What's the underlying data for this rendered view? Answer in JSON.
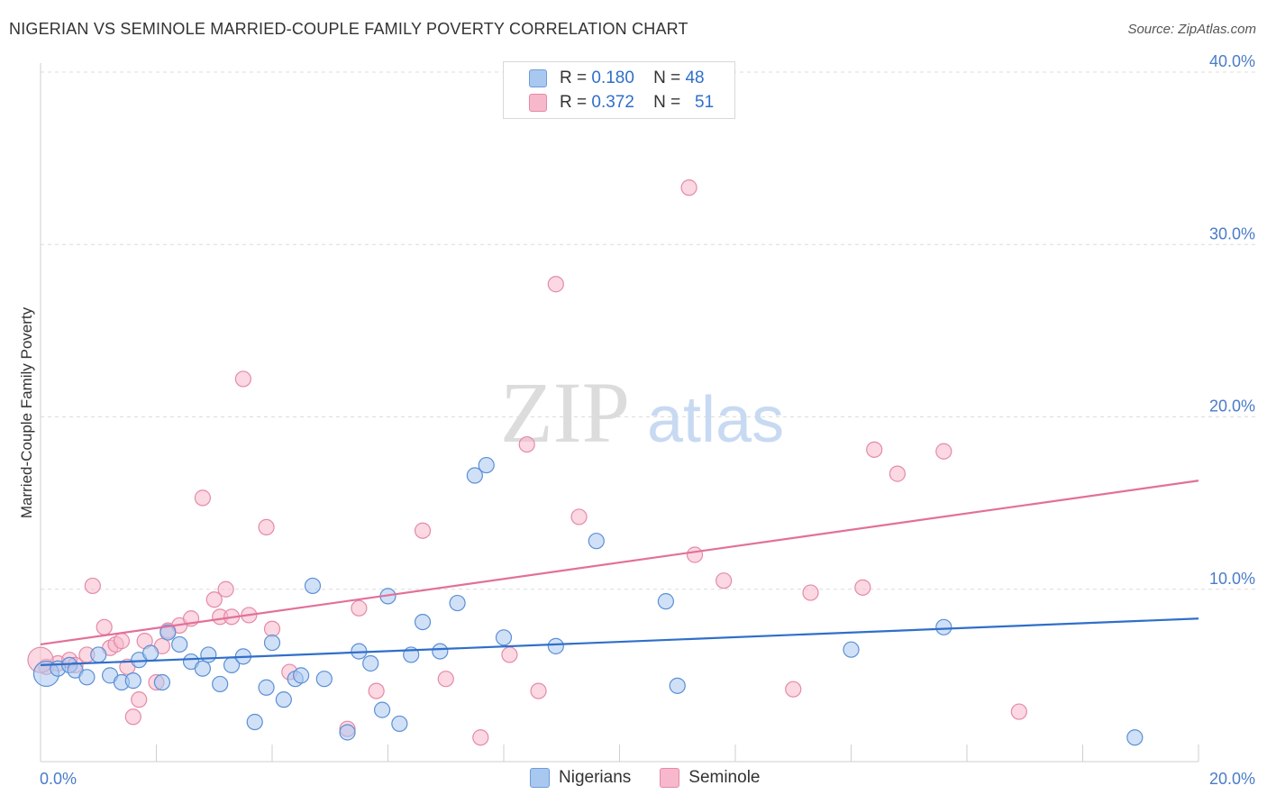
{
  "header": {
    "title": "NIGERIAN VS SEMINOLE MARRIED-COUPLE FAMILY POVERTY CORRELATION CHART",
    "source": "Source: ZipAtlas.com"
  },
  "watermark": {
    "zip": "ZIP",
    "atlas": "atlas"
  },
  "legend": {
    "rows": [
      {
        "r_label": "R =",
        "r_value": "0.180",
        "n_label": "N =",
        "n_value": "48",
        "color": "#a9c8f0"
      },
      {
        "r_label": "R =",
        "r_value": "0.372",
        "n_label": "N =",
        "n_value": "51",
        "color": "#f7b8cb"
      }
    ]
  },
  "bottom_legend": {
    "series1": "Nigerians",
    "series2": "Seminole"
  },
  "chart_data": {
    "type": "scatter",
    "title": "NIGERIAN VS SEMINOLE MARRIED-COUPLE FAMILY POVERTY CORRELATION CHART",
    "xlabel": "",
    "ylabel": "Married-Couple Family Poverty",
    "xlim": [
      0,
      20
    ],
    "ylim": [
      0,
      40
    ],
    "x_tick_labels": [
      "0.0%",
      "20.0%"
    ],
    "y_tick_labels": [
      "10.0%",
      "20.0%",
      "30.0%",
      "40.0%"
    ],
    "y_ticks": [
      10,
      20,
      30,
      40
    ],
    "grid": true,
    "legend_position": "top-center",
    "series": [
      {
        "name": "Nigerians",
        "color": "#5b8fd6",
        "fill": "#a9c8f0",
        "trend": {
          "x": [
            0,
            20
          ],
          "y": [
            5.6,
            8.3
          ],
          "color": "#2f6fca"
        },
        "points": [
          [
            0.1,
            5.1
          ],
          [
            0.3,
            5.4
          ],
          [
            0.5,
            5.6
          ],
          [
            0.6,
            5.3
          ],
          [
            0.8,
            4.9
          ],
          [
            1.0,
            6.2
          ],
          [
            1.2,
            5.0
          ],
          [
            1.4,
            4.6
          ],
          [
            1.6,
            4.7
          ],
          [
            1.7,
            5.9
          ],
          [
            1.9,
            6.3
          ],
          [
            2.1,
            4.6
          ],
          [
            2.2,
            7.5
          ],
          [
            2.4,
            6.8
          ],
          [
            2.6,
            5.8
          ],
          [
            2.8,
            5.4
          ],
          [
            2.9,
            6.2
          ],
          [
            3.1,
            4.5
          ],
          [
            3.3,
            5.6
          ],
          [
            3.5,
            6.1
          ],
          [
            3.7,
            2.3
          ],
          [
            3.9,
            4.3
          ],
          [
            4.0,
            6.9
          ],
          [
            4.2,
            3.6
          ],
          [
            4.4,
            4.8
          ],
          [
            4.5,
            5.0
          ],
          [
            4.7,
            10.2
          ],
          [
            4.9,
            4.8
          ],
          [
            5.3,
            1.7
          ],
          [
            5.5,
            6.4
          ],
          [
            5.7,
            5.7
          ],
          [
            5.9,
            3.0
          ],
          [
            6.0,
            9.6
          ],
          [
            6.2,
            2.2
          ],
          [
            6.4,
            6.2
          ],
          [
            6.6,
            8.1
          ],
          [
            6.9,
            6.4
          ],
          [
            7.2,
            9.2
          ],
          [
            7.5,
            16.6
          ],
          [
            7.7,
            17.2
          ],
          [
            8.0,
            7.2
          ],
          [
            8.9,
            6.7
          ],
          [
            9.6,
            12.8
          ],
          [
            10.8,
            9.3
          ],
          [
            11.0,
            4.4
          ],
          [
            14.0,
            6.5
          ],
          [
            15.6,
            7.8
          ],
          [
            18.9,
            1.4
          ]
        ]
      },
      {
        "name": "Seminole",
        "color": "#e58aa8",
        "fill": "#f7b8cb",
        "trend": {
          "x": [
            0,
            20
          ],
          "y": [
            6.8,
            16.3
          ],
          "color": "#e2709a"
        },
        "points": [
          [
            0.1,
            5.5
          ],
          [
            0.3,
            5.7
          ],
          [
            0.5,
            5.9
          ],
          [
            0.6,
            5.6
          ],
          [
            0.8,
            6.2
          ],
          [
            0.9,
            10.2
          ],
          [
            1.1,
            7.8
          ],
          [
            1.2,
            6.6
          ],
          [
            1.3,
            6.8
          ],
          [
            1.4,
            7.0
          ],
          [
            1.5,
            5.5
          ],
          [
            1.6,
            2.6
          ],
          [
            1.7,
            3.6
          ],
          [
            1.8,
            7.0
          ],
          [
            2.0,
            4.6
          ],
          [
            2.1,
            6.7
          ],
          [
            2.2,
            7.6
          ],
          [
            2.4,
            7.9
          ],
          [
            2.6,
            8.3
          ],
          [
            2.8,
            15.3
          ],
          [
            3.0,
            9.4
          ],
          [
            3.1,
            8.4
          ],
          [
            3.2,
            10.0
          ],
          [
            3.3,
            8.4
          ],
          [
            3.5,
            22.2
          ],
          [
            3.6,
            8.5
          ],
          [
            3.9,
            13.6
          ],
          [
            4.0,
            7.7
          ],
          [
            4.3,
            5.2
          ],
          [
            5.3,
            1.9
          ],
          [
            5.5,
            8.9
          ],
          [
            5.8,
            4.1
          ],
          [
            6.6,
            13.4
          ],
          [
            7.0,
            4.8
          ],
          [
            7.6,
            1.4
          ],
          [
            8.1,
            6.2
          ],
          [
            8.4,
            18.4
          ],
          [
            8.6,
            4.1
          ],
          [
            8.9,
            27.7
          ],
          [
            9.3,
            14.2
          ],
          [
            11.2,
            33.3
          ],
          [
            11.3,
            12.0
          ],
          [
            11.8,
            10.5
          ],
          [
            13.0,
            4.2
          ],
          [
            13.3,
            9.8
          ],
          [
            14.2,
            10.1
          ],
          [
            14.4,
            18.1
          ],
          [
            14.8,
            16.7
          ],
          [
            15.6,
            18.0
          ],
          [
            16.9,
            2.9
          ],
          [
            0.0,
            5.9
          ]
        ]
      }
    ]
  }
}
